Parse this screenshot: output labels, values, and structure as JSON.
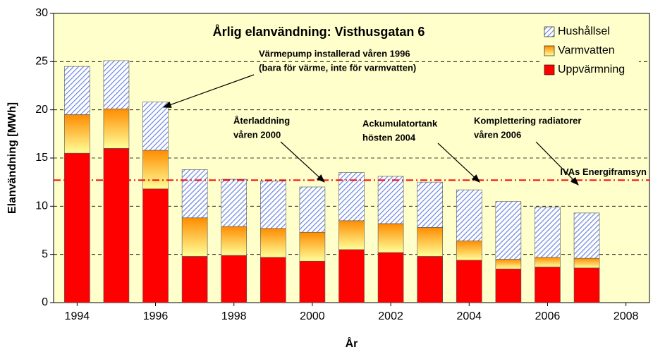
{
  "chart_data": {
    "type": "stacked_bar",
    "title": "Årlig elanvändning: Visthusgatan 6",
    "x_label": "År",
    "y_label": "Elanvändning [MWh]",
    "x": [
      1994,
      1995,
      1996,
      1997,
      1998,
      1999,
      2000,
      2001,
      2002,
      2003,
      2004,
      2005,
      2006,
      2007
    ],
    "series": [
      {
        "name": "Uppvärmning",
        "color": "#ff0000",
        "fill": "solid",
        "values": [
          15.5,
          16.0,
          11.8,
          4.8,
          4.9,
          4.7,
          4.3,
          5.5,
          5.2,
          4.8,
          4.4,
          3.5,
          3.7,
          3.6
        ]
      },
      {
        "name": "Varmvatten",
        "color": "#ff8c00",
        "fill": "gradient",
        "values": [
          4.0,
          4.1,
          4.0,
          4.0,
          3.0,
          3.0,
          3.0,
          3.0,
          3.0,
          3.0,
          2.0,
          1.0,
          1.0,
          1.0
        ]
      },
      {
        "name": "Hushållsel",
        "color": "#6a85e0",
        "fill": "hatch",
        "values": [
          5.0,
          5.0,
          5.0,
          5.0,
          4.9,
          4.9,
          4.7,
          5.0,
          4.9,
          4.7,
          5.3,
          6.0,
          5.2,
          4.7
        ]
      }
    ],
    "xlim": [
      1993.4,
      2008.6
    ],
    "xticks": [
      1994,
      1996,
      1998,
      2000,
      2002,
      2004,
      2006,
      2008
    ],
    "ylim": [
      0,
      30
    ],
    "yticks": [
      0,
      5,
      10,
      15,
      20,
      25,
      30
    ],
    "grid": true,
    "legend": "upper right",
    "reference_line": {
      "value": 12.7,
      "label": "IVAs Energiframsyn",
      "color": "#ff0000"
    },
    "annotations": [
      {
        "lines": [
          "Värmepump installerad våren 1996",
          "(bara för värme, inte för varmvatten)"
        ]
      },
      {
        "lines": [
          "Återladdning",
          "våren 2000"
        ]
      },
      {
        "lines": [
          "Ackumulatortank",
          "hösten 2004"
        ]
      },
      {
        "lines": [
          "Komplettering radiatorer",
          "våren 2006"
        ]
      }
    ]
  }
}
